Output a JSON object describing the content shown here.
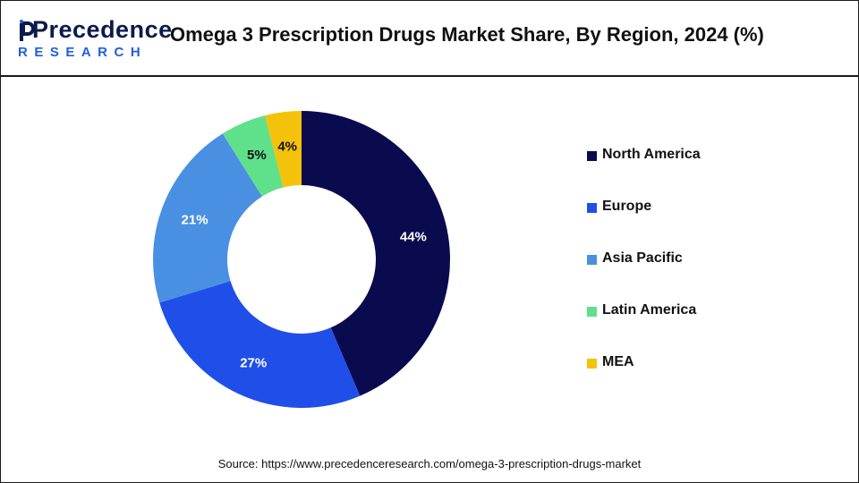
{
  "header": {
    "logo_text": "Precedence",
    "logo_subtext": "RESEARCH",
    "title": "Omega 3 Prescription Drugs Market Share, By Region, 2024 (%)"
  },
  "colors": {
    "north_america": "#0a0a4f",
    "europe": "#1f4fe8",
    "asia_pacific": "#4a90e2",
    "latin_america": "#5fe08a",
    "mea": "#f5c20b"
  },
  "chart_data": {
    "type": "pie",
    "donut": true,
    "title": "Omega 3 Prescription Drugs Market Share, By Region, 2024 (%)",
    "legend_position": "right",
    "slices": [
      {
        "name": "North America",
        "value": 44,
        "label": "44%",
        "color": "#0a0a4f",
        "label_color": "#ffffff"
      },
      {
        "name": "Europe",
        "value": 27,
        "label": "27%",
        "color": "#1f4fe8",
        "label_color": "#ffffff"
      },
      {
        "name": "Asia Pacific",
        "value": 21,
        "label": "21%",
        "color": "#4a90e2",
        "label_color": "#ffffff"
      },
      {
        "name": "Latin America",
        "value": 5,
        "label": "5%",
        "color": "#5fe08a",
        "label_color": "#111111"
      },
      {
        "name": "MEA",
        "value": 4,
        "label": "4%",
        "color": "#f5c20b",
        "label_color": "#111111"
      }
    ]
  },
  "legend": {
    "items": [
      "North America",
      "Europe",
      "Asia Pacific",
      "Latin America",
      "MEA"
    ]
  },
  "footer": {
    "source": "Source: https://www.precedenceresearch.com/omega-3-prescription-drugs-market"
  }
}
